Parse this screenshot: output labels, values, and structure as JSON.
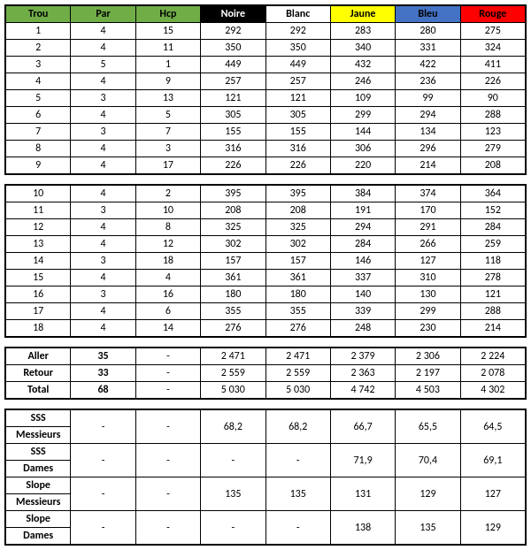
{
  "columns": [
    {
      "key": "trou",
      "label": "Trou",
      "bg": "#70ad47",
      "bold": true
    },
    {
      "key": "par",
      "label": "Par",
      "bg": "#70ad47",
      "bold": true
    },
    {
      "key": "hcp",
      "label": "Hcp",
      "bg": "#70ad47",
      "bold": true
    },
    {
      "key": "noire",
      "label": "Noire",
      "bg": "#000000",
      "color": "#ffffff",
      "bold": true
    },
    {
      "key": "blanc",
      "label": "Blanc",
      "bg": "#ffffff",
      "bold": true
    },
    {
      "key": "jaune",
      "label": "Jaune",
      "bg": "#ffff00",
      "bold": true
    },
    {
      "key": "bleu",
      "label": "Bleu",
      "bg": "#4472c4",
      "bold": true
    },
    {
      "key": "rouge",
      "label": "Rouge",
      "bg": "#ff0000",
      "bold": true
    }
  ],
  "front": [
    [
      "1",
      "4",
      "15",
      "292",
      "292",
      "283",
      "280",
      "275"
    ],
    [
      "2",
      "4",
      "11",
      "350",
      "350",
      "340",
      "331",
      "324"
    ],
    [
      "3",
      "5",
      "1",
      "449",
      "449",
      "432",
      "422",
      "411"
    ],
    [
      "4",
      "4",
      "9",
      "257",
      "257",
      "246",
      "236",
      "226"
    ],
    [
      "5",
      "3",
      "13",
      "121",
      "121",
      "109",
      "99",
      "90"
    ],
    [
      "6",
      "4",
      "5",
      "305",
      "305",
      "299",
      "294",
      "288"
    ],
    [
      "7",
      "3",
      "7",
      "155",
      "155",
      "144",
      "134",
      "123"
    ],
    [
      "8",
      "4",
      "3",
      "316",
      "316",
      "306",
      "296",
      "279"
    ],
    [
      "9",
      "4",
      "17",
      "226",
      "226",
      "220",
      "214",
      "208"
    ]
  ],
  "back": [
    [
      "10",
      "4",
      "2",
      "395",
      "395",
      "384",
      "374",
      "364"
    ],
    [
      "11",
      "3",
      "10",
      "208",
      "208",
      "191",
      "170",
      "152"
    ],
    [
      "12",
      "4",
      "8",
      "325",
      "325",
      "294",
      "291",
      "284"
    ],
    [
      "13",
      "4",
      "12",
      "302",
      "302",
      "284",
      "266",
      "259"
    ],
    [
      "14",
      "3",
      "18",
      "157",
      "157",
      "146",
      "127",
      "118"
    ],
    [
      "15",
      "4",
      "4",
      "361",
      "361",
      "337",
      "310",
      "278"
    ],
    [
      "16",
      "3",
      "16",
      "180",
      "180",
      "140",
      "130",
      "121"
    ],
    [
      "17",
      "4",
      "6",
      "355",
      "355",
      "339",
      "299",
      "288"
    ],
    [
      "18",
      "4",
      "14",
      "276",
      "276",
      "248",
      "230",
      "214"
    ]
  ],
  "totals": [
    {
      "label": "Aller",
      "par": "35",
      "hcp": "-",
      "vals": [
        "2 471",
        "2 471",
        "2 379",
        "2 306",
        "2 224"
      ]
    },
    {
      "label": "Retour",
      "par": "33",
      "hcp": "-",
      "vals": [
        "2 559",
        "2 559",
        "2 363",
        "2 197",
        "2 078"
      ]
    },
    {
      "label": "Total",
      "par": "68",
      "hcp": "-",
      "vals": [
        "5 030",
        "5 030",
        "4 742",
        "4 503",
        "4 302"
      ]
    }
  ],
  "ratings": [
    {
      "labels": [
        "SSS",
        "Messieurs"
      ],
      "par": "-",
      "hcp": "-",
      "vals": [
        "68,2",
        "68,2",
        "66,7",
        "65,5",
        "64,5"
      ]
    },
    {
      "labels": [
        "SSS",
        "Dames"
      ],
      "par": "-",
      "hcp": "-",
      "vals": [
        "-",
        "-",
        "71,9",
        "70,4",
        "69,1"
      ]
    },
    {
      "labels": [
        "Slope",
        "Messieurs"
      ],
      "par": "-",
      "hcp": "-",
      "vals": [
        "135",
        "135",
        "131",
        "129",
        "127"
      ]
    },
    {
      "labels": [
        "Slope",
        "Dames"
      ],
      "par": "-",
      "hcp": "-",
      "vals": [
        "-",
        "-",
        "138",
        "135",
        "129"
      ]
    }
  ]
}
